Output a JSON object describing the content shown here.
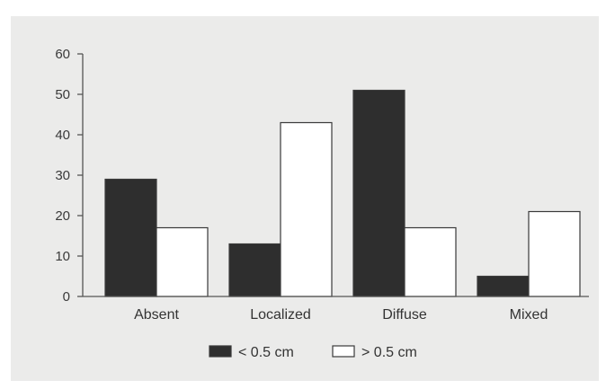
{
  "chart_data": {
    "type": "bar",
    "title": "",
    "xlabel": "",
    "ylabel": "",
    "categories": [
      "Absent",
      "Localized",
      "Diffuse",
      "Mixed"
    ],
    "series": [
      {
        "name": "< 0.5 cm",
        "values": [
          29,
          13,
          51,
          5
        ],
        "color": "#2e2e2e"
      },
      {
        "name": "> 0.5 cm",
        "values": [
          17,
          43,
          17,
          21
        ],
        "color": "#ffffff"
      }
    ],
    "ylim": [
      0,
      60
    ],
    "yticks": [
      "0",
      "10",
      "20",
      "30",
      "40",
      "50",
      "60"
    ],
    "grid": false,
    "legend_position": "bottom-center",
    "colors": {
      "background": "#ebebea",
      "axis": "#555555",
      "text": "#333333"
    }
  }
}
